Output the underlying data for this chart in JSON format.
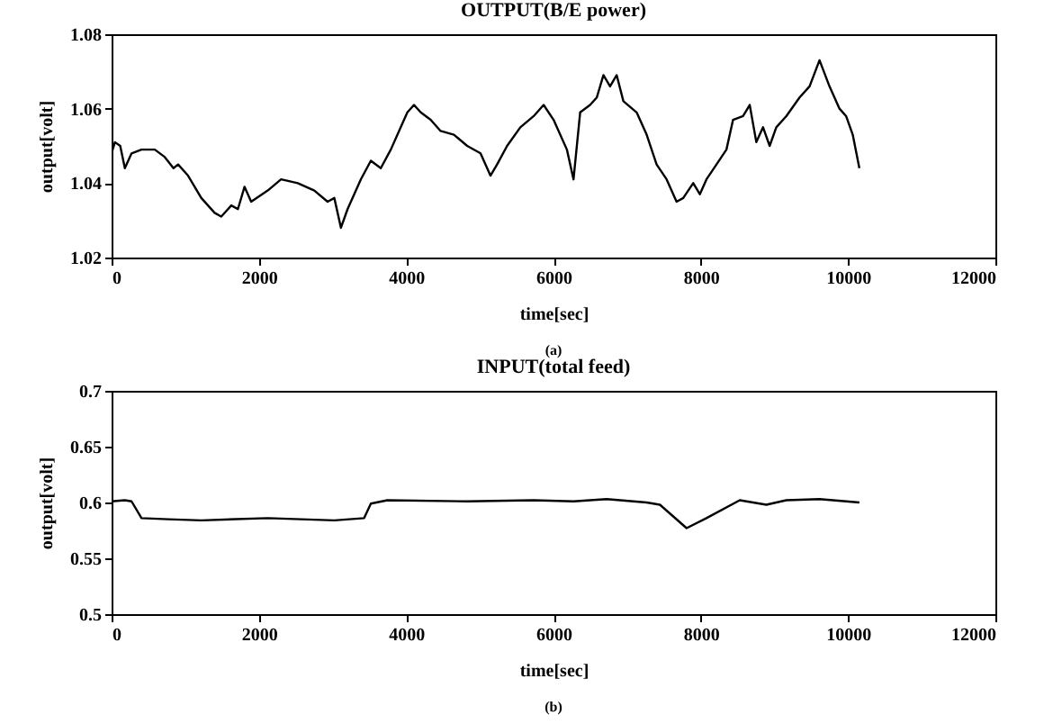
{
  "chart_data": [
    {
      "type": "line",
      "title": "OUTPUT(B/E power)",
      "xlabel": "time[sec]",
      "ylabel": "output[volt]",
      "annotations": [
        "(a)"
      ],
      "x": [
        0,
        45,
        117,
        180,
        271,
        406,
        587,
        722,
        840,
        903,
        1038,
        1218,
        1399,
        1489,
        1625,
        1715,
        1805,
        1895,
        2120,
        2301,
        2527,
        2753,
        2933,
        3024,
        3114,
        3204,
        3384,
        3520,
        3655,
        3791,
        3926,
        4016,
        4106,
        4197,
        4332,
        4467,
        4648,
        4828,
        5009,
        5144,
        5234,
        5370,
        5550,
        5731,
        5866,
        6001,
        6182,
        6272,
        6362,
        6497,
        6588,
        6678,
        6768,
        6858,
        6949,
        7129,
        7265,
        7400,
        7536,
        7671,
        7762,
        7897,
        7987,
        8077,
        8213,
        8348,
        8438,
        8574,
        8664,
        8754,
        8845,
        8935,
        9025,
        9161,
        9341,
        9477,
        9612,
        9747,
        9883,
        9973,
        10063,
        10153
      ],
      "series": [
        {
          "color": "#000000",
          "values": [
            1.048,
            1.051,
            1.05,
            1.044,
            1.048,
            1.049,
            1.049,
            1.047,
            1.044,
            1.045,
            1.042,
            1.036,
            1.032,
            1.031,
            1.034,
            1.033,
            1.039,
            1.035,
            1.038,
            1.041,
            1.04,
            1.038,
            1.035,
            1.036,
            1.028,
            1.033,
            1.041,
            1.046,
            1.044,
            1.049,
            1.055,
            1.059,
            1.061,
            1.059,
            1.057,
            1.054,
            1.053,
            1.05,
            1.048,
            1.042,
            1.045,
            1.05,
            1.055,
            1.058,
            1.061,
            1.057,
            1.049,
            1.041,
            1.059,
            1.061,
            1.063,
            1.069,
            1.066,
            1.069,
            1.062,
            1.059,
            1.053,
            1.045,
            1.041,
            1.035,
            1.036,
            1.04,
            1.037,
            1.041,
            1.045,
            1.049,
            1.057,
            1.058,
            1.061,
            1.051,
            1.055,
            1.05,
            1.055,
            1.058,
            1.063,
            1.066,
            1.073,
            1.066,
            1.06,
            1.058,
            1.053,
            1.044
          ]
        }
      ],
      "xlim": [
        0,
        12000
      ],
      "xticks": [
        0,
        2000,
        4000,
        6000,
        8000,
        10000,
        12000
      ],
      "ylim": [
        1.02,
        1.08
      ],
      "yticks": [
        1.02,
        1.04,
        1.06,
        1.08
      ],
      "grid": false
    },
    {
      "type": "line",
      "title": "INPUT(total feed)",
      "xlabel": "time[sec]",
      "ylabel": "output[volt]",
      "annotations": [
        "(b)"
      ],
      "x": [
        0,
        180,
        271,
        406,
        767,
        1218,
        2120,
        3024,
        3429,
        3520,
        3745,
        4828,
        5731,
        6272,
        6723,
        7265,
        7445,
        7807,
        8077,
        8529,
        8890,
        9161,
        9612,
        10153
      ],
      "series": [
        {
          "color": "#000000",
          "values": [
            0.601,
            0.602,
            0.601,
            0.586,
            0.585,
            0.584,
            0.586,
            0.584,
            0.586,
            0.599,
            0.602,
            0.601,
            0.602,
            0.601,
            0.603,
            0.6,
            0.598,
            0.577,
            0.586,
            0.602,
            0.598,
            0.602,
            0.603,
            0.6
          ]
        }
      ],
      "xlim": [
        0,
        12000
      ],
      "xticks": [
        0,
        2000,
        4000,
        6000,
        8000,
        10000,
        12000
      ],
      "ylim": [
        0.5,
        0.7
      ],
      "yticks": [
        0.5,
        0.55,
        0.6,
        0.65,
        0.7
      ],
      "grid": false
    }
  ]
}
